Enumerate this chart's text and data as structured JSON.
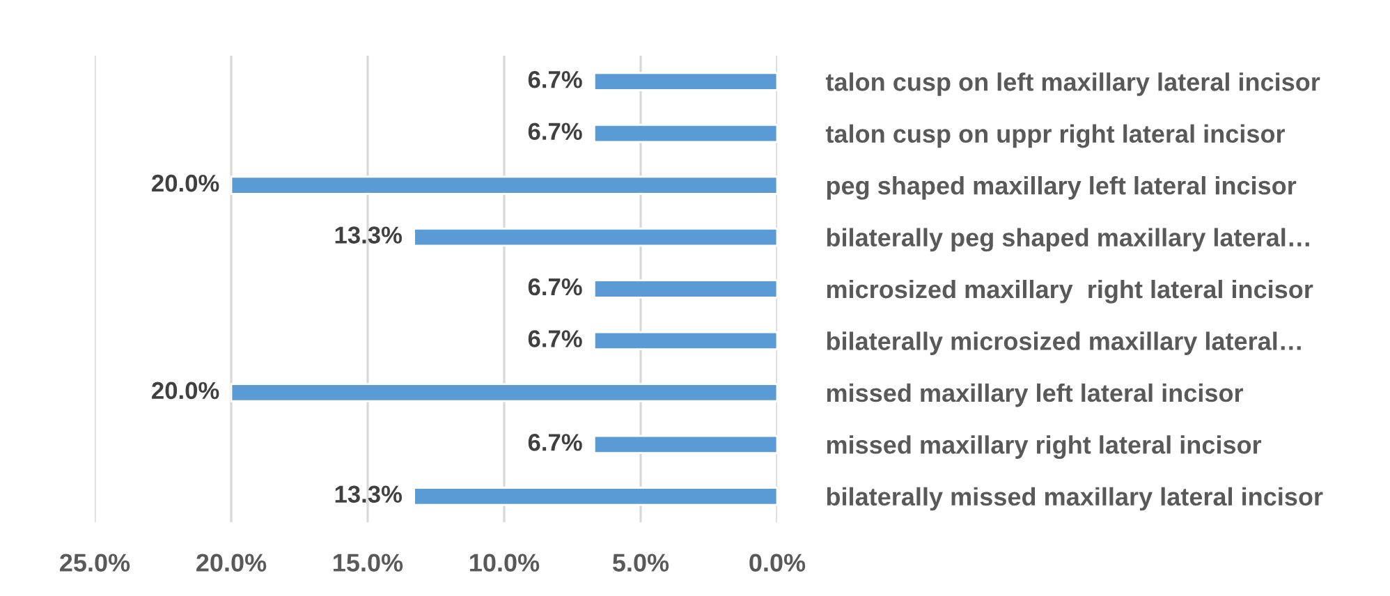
{
  "chart_data": {
    "type": "bar",
    "orientation": "horizontal",
    "categories": [
      "talon cusp on left maxillary lateral incisor",
      "talon cusp on uppr right lateral incisor",
      "peg shaped maxillary left lateral incisor",
      "bilaterally peg shaped maxillary lateral…",
      "microsized maxillary  right lateral incisor",
      "bilaterally microsized maxillary lateral…",
      "missed maxillary left lateral incisor",
      "missed maxillary right lateral incisor",
      "bilaterally missed maxillary lateral incisor"
    ],
    "values": [
      6.7,
      6.7,
      20.0,
      13.3,
      6.7,
      6.7,
      20.0,
      6.7,
      13.3
    ],
    "value_labels": [
      "6.7%",
      "6.7%",
      "20.0%",
      "13.3%",
      "6.7%",
      "6.7%",
      "20.0%",
      "6.7%",
      "13.3%"
    ],
    "color": "#5b9bd5",
    "xlim": [
      25,
      0
    ],
    "xticks": [
      {
        "value": 25,
        "label": "25.0%"
      },
      {
        "value": 20,
        "label": "20.0%"
      },
      {
        "value": 15,
        "label": "15.0%"
      },
      {
        "value": 10,
        "label": "10.0%"
      },
      {
        "value": 5,
        "label": "5.0%"
      },
      {
        "value": 0,
        "label": "0.0%"
      }
    ],
    "grid": "x",
    "legend": false
  }
}
